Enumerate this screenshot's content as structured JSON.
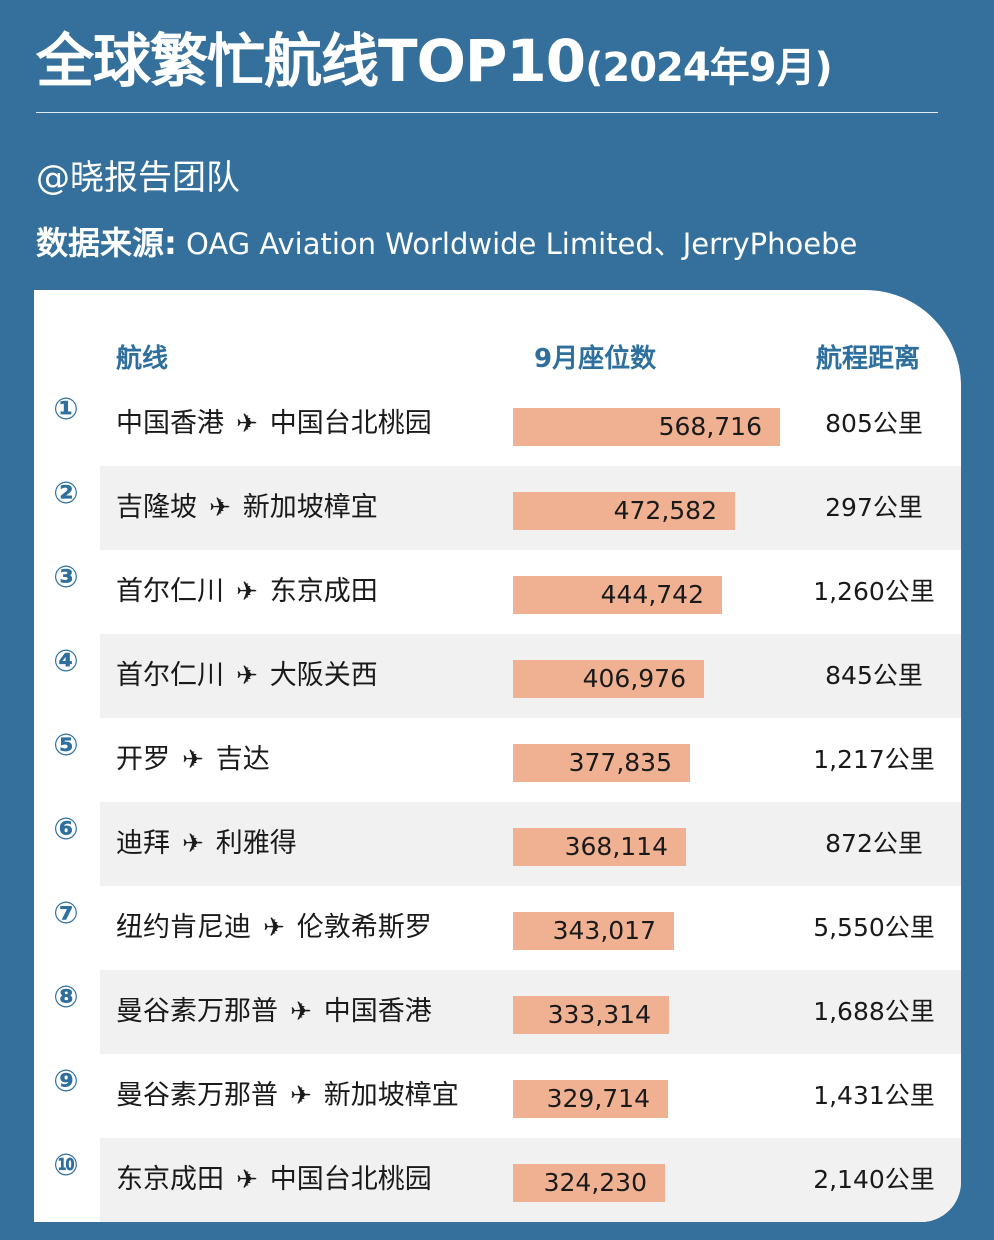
{
  "header": {
    "title_main": "全球繁忙航线TOP10",
    "title_sub": "(2024年9月)",
    "team": "@晓报告团队",
    "source_label": "数据来源:",
    "source_text": " OAG Aviation Worldwide Limited、JerryPhoebe"
  },
  "chart_data": {
    "type": "bar",
    "columns": [
      "航线",
      "9月座位数",
      "航程距离"
    ],
    "rows": [
      {
        "rank": "①",
        "from": "中国香港",
        "to": "中国台北桃园",
        "seats": 568716,
        "seats_label": "568,716",
        "distance": "805公里"
      },
      {
        "rank": "②",
        "from": "吉隆坡",
        "to": "新加坡樟宜",
        "seats": 472582,
        "seats_label": "472,582",
        "distance": "297公里"
      },
      {
        "rank": "③",
        "from": "首尔仁川",
        "to": "东京成田",
        "seats": 444742,
        "seats_label": "444,742",
        "distance": "1,260公里"
      },
      {
        "rank": "④",
        "from": "首尔仁川",
        "to": "大阪关西",
        "seats": 406976,
        "seats_label": "406,976",
        "distance": "845公里"
      },
      {
        "rank": "⑤",
        "from": "开罗",
        "to": "吉达",
        "seats": 377835,
        "seats_label": "377,835",
        "distance": "1,217公里"
      },
      {
        "rank": "⑥",
        "from": "迪拜",
        "to": "利雅得",
        "seats": 368114,
        "seats_label": "368,114",
        "distance": "872公里"
      },
      {
        "rank": "⑦",
        "from": "纽约肯尼迪",
        "to": "伦敦希斯罗",
        "seats": 343017,
        "seats_label": "343,017",
        "distance": "5,550公里"
      },
      {
        "rank": "⑧",
        "from": "曼谷素万那普",
        "to": "中国香港",
        "seats": 333314,
        "seats_label": "333,314",
        "distance": "1,688公里"
      },
      {
        "rank": "⑨",
        "from": "曼谷素万那普",
        "to": "新加坡樟宜",
        "seats": 329714,
        "seats_label": "329,714",
        "distance": "1,431公里"
      },
      {
        "rank": "⑩",
        "from": "东京成田",
        "to": "中国台北桃园",
        "seats": 324230,
        "seats_label": "324,230",
        "distance": "2,140公里"
      }
    ],
    "colors": {
      "bar": "#efb191",
      "accent": "#2e6f9e",
      "background": "#34709b"
    }
  }
}
